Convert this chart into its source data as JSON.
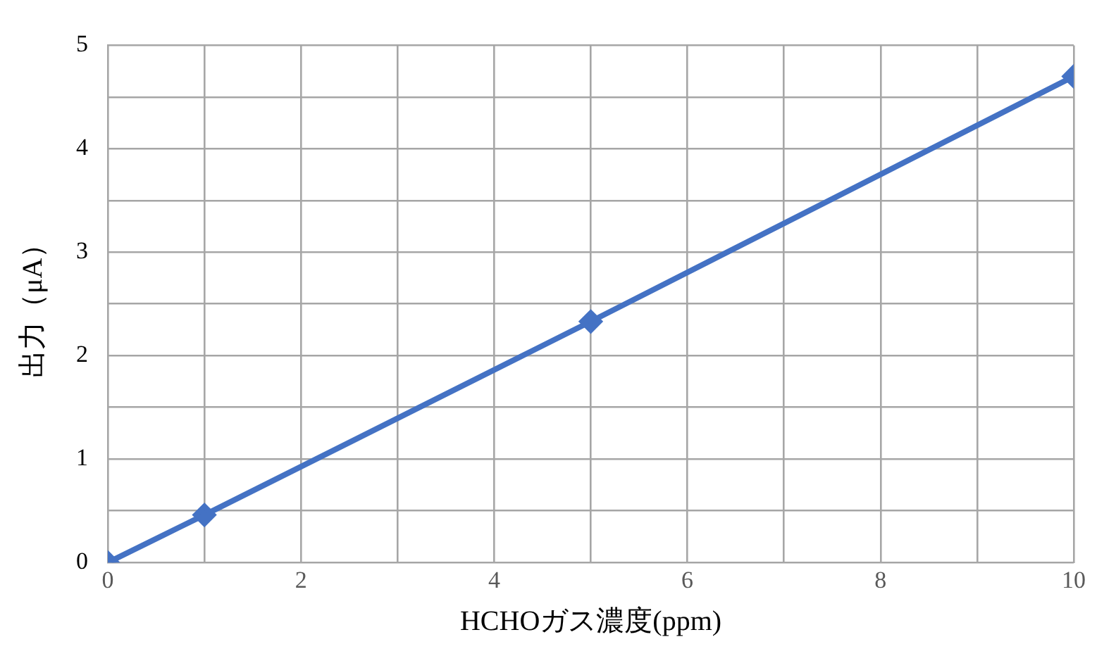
{
  "chart_data": {
    "type": "line",
    "xlabel": "HCHOガス濃度(ppm)",
    "ylabel": "出力（μA）",
    "x": [
      0,
      1,
      5,
      10
    ],
    "series": [
      {
        "color": "#4472c4",
        "values": [
          0,
          0.46,
          2.33,
          4.7
        ]
      }
    ],
    "xlim": [
      0,
      10
    ],
    "xticks": [
      0,
      {
        "value": 1,
        "label": null
      },
      2,
      {
        "value": 3,
        "label": null
      },
      4,
      {
        "value": 5,
        "label": null
      },
      6,
      {
        "value": 7,
        "label": null
      },
      8,
      {
        "value": 9,
        "label": null
      },
      10
    ],
    "ylim": [
      0,
      5
    ],
    "yticks": [
      0,
      {
        "value": 0.5,
        "label": null
      },
      1,
      {
        "value": 1.5,
        "label": null
      },
      2,
      {
        "value": 2.5,
        "label": null
      },
      3,
      {
        "value": 3.5,
        "label": null
      },
      4,
      {
        "value": 4.5,
        "label": null
      },
      5
    ],
    "grid": true,
    "legend": false,
    "marker": "diamond",
    "line_style": "solid"
  }
}
